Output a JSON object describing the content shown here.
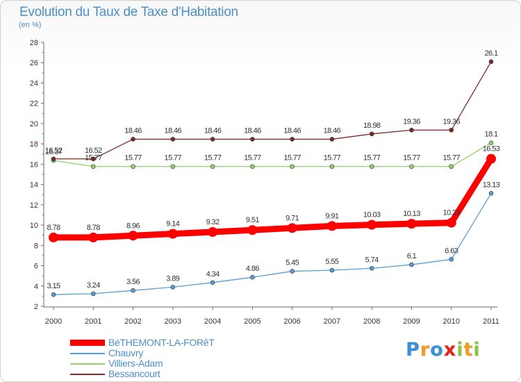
{
  "title": "Evolution du Taux de Taxe d'Habitation",
  "unit_label": "(en %)",
  "logo": {
    "text": "Proxiti",
    "letters": [
      {
        "ch": "P",
        "color": "#3b8fd6"
      },
      {
        "ch": "r",
        "color": "#f39a1e"
      },
      {
        "ch": "o",
        "color": "#3b8fd6"
      },
      {
        "ch": "x",
        "color": "#e2231a"
      },
      {
        "ch": "i",
        "color": "#8cc63f"
      },
      {
        "ch": "t",
        "color": "#f39a1e"
      },
      {
        "ch": "i",
        "color": "#8cc63f"
      }
    ]
  },
  "chart_data": {
    "type": "line",
    "x": [
      "2000",
      "2001",
      "2002",
      "2003",
      "2004",
      "2005",
      "2006",
      "2007",
      "2008",
      "2009",
      "2010",
      "2011"
    ],
    "ylim": [
      2,
      28
    ],
    "yticks": [
      2,
      4,
      6,
      8,
      10,
      12,
      14,
      16,
      18,
      20,
      22,
      24,
      26,
      28
    ],
    "grid": false,
    "legend_position": "bottom-left",
    "series": [
      {
        "name": "BéTHEMONT-LA-FORêT",
        "color": "#ff0000",
        "emphasis": true,
        "values": [
          8.78,
          8.78,
          8.96,
          9.14,
          9.32,
          9.51,
          9.71,
          9.91,
          10.03,
          10.13,
          10.23,
          16.53
        ],
        "labels": [
          "8.78",
          "8.78",
          "8.96",
          "9.14",
          "9.32",
          "9.51",
          "9.71",
          "9.91",
          "10.03",
          "10.13",
          "10.23",
          "16.53"
        ]
      },
      {
        "name": "Chauvry",
        "color": "#5b9bd5",
        "emphasis": false,
        "values": [
          3.15,
          3.24,
          3.56,
          3.89,
          4.34,
          4.86,
          5.45,
          5.55,
          5.74,
          6.1,
          6.63,
          13.13
        ],
        "labels": [
          "3.15",
          "3.24",
          "3.56",
          "3.89",
          "4.34",
          "4.86",
          "5.45",
          "5.55",
          "5.74",
          "6.1",
          "6.63",
          "13.13"
        ]
      },
      {
        "name": "Villiers-Adam",
        "color": "#8fd16a",
        "emphasis": false,
        "values": [
          16.37,
          15.77,
          15.77,
          15.77,
          15.77,
          15.77,
          15.77,
          15.77,
          15.77,
          15.77,
          15.77,
          18.1
        ],
        "labels": [
          "16.37",
          "15.77",
          "15.77",
          "15.77",
          "15.77",
          "15.77",
          "15.77",
          "15.77",
          "15.77",
          "15.77",
          "15.77",
          "18.1"
        ]
      },
      {
        "name": "Bessancourt",
        "color": "#7a2a2a",
        "emphasis": false,
        "values": [
          16.52,
          16.52,
          18.46,
          18.46,
          18.46,
          18.46,
          18.46,
          18.46,
          18.98,
          19.36,
          19.36,
          26.1
        ],
        "labels": [
          "16.52",
          "16.52",
          "18.46",
          "18.46",
          "18.46",
          "18.46",
          "18.46",
          "18.46",
          "18.98",
          "19.36",
          "19.36",
          "26.1"
        ]
      }
    ]
  }
}
